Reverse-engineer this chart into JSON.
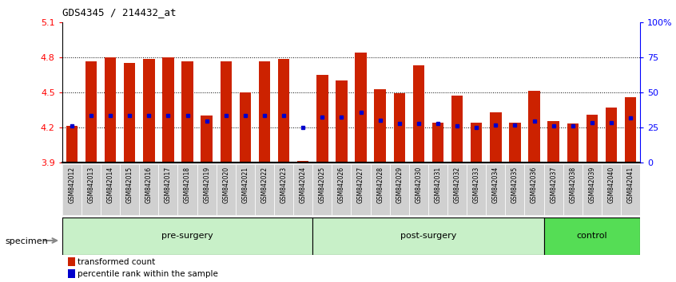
{
  "title": "GDS4345 / 214432_at",
  "samples": [
    "GSM842012",
    "GSM842013",
    "GSM842014",
    "GSM842015",
    "GSM842016",
    "GSM842017",
    "GSM842018",
    "GSM842019",
    "GSM842020",
    "GSM842021",
    "GSM842022",
    "GSM842023",
    "GSM842024",
    "GSM842025",
    "GSM842026",
    "GSM842027",
    "GSM842028",
    "GSM842029",
    "GSM842030",
    "GSM842031",
    "GSM842032",
    "GSM842033",
    "GSM842034",
    "GSM842035",
    "GSM842036",
    "GSM842037",
    "GSM842038",
    "GSM842039",
    "GSM842040",
    "GSM842041"
  ],
  "bar_heights": [
    4.21,
    4.77,
    4.8,
    4.75,
    4.79,
    4.8,
    4.77,
    4.3,
    4.77,
    4.5,
    4.77,
    4.79,
    3.91,
    4.65,
    4.6,
    4.84,
    4.53,
    4.49,
    4.73,
    4.24,
    4.47,
    4.24,
    4.33,
    4.24,
    4.51,
    4.25,
    4.23,
    4.31,
    4.37,
    4.46
  ],
  "blue_dot_values": [
    4.21,
    4.3,
    4.3,
    4.3,
    4.3,
    4.3,
    4.3,
    4.25,
    4.3,
    4.3,
    4.3,
    4.3,
    4.2,
    4.29,
    4.29,
    4.33,
    4.26,
    4.23,
    4.23,
    4.23,
    4.21,
    4.2,
    4.22,
    4.22,
    4.25,
    4.21,
    4.21,
    4.24,
    4.24,
    4.28
  ],
  "groups": [
    {
      "label": "pre-surgery",
      "start": 0,
      "end": 13,
      "color_light": "#c8f0c8",
      "color_dark": "#c8f0c8"
    },
    {
      "label": "post-surgery",
      "start": 13,
      "end": 25,
      "color_light": "#c8f0c8",
      "color_dark": "#c8f0c8"
    },
    {
      "label": "control",
      "start": 25,
      "end": 30,
      "color_light": "#55dd55",
      "color_dark": "#55dd55"
    }
  ],
  "bar_color": "#CC2200",
  "dot_color": "#0000CC",
  "baseline": 3.9,
  "ylim_left": [
    3.9,
    5.1
  ],
  "ylim_right": [
    0,
    100
  ],
  "yticks_left": [
    3.9,
    4.2,
    4.5,
    4.8,
    5.1
  ],
  "yticks_right": [
    0,
    25,
    50,
    75,
    100
  ],
  "ytick_labels_right": [
    "0",
    "25",
    "50",
    "75",
    "100%"
  ],
  "grid_values": [
    4.2,
    4.5,
    4.8
  ],
  "tick_label_bg": "#d8d8d8"
}
